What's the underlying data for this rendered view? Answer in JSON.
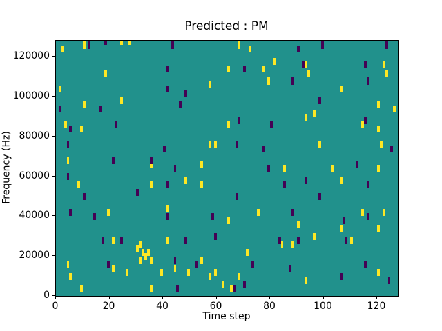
{
  "chart_data": {
    "type": "heatmap",
    "title": "Predicted : PM",
    "xlabel": "Time step",
    "ylabel": "Frequency (Hz)",
    "xlim": [
      0,
      128
    ],
    "ylim": [
      0,
      128000
    ],
    "xticks": [
      0,
      20,
      40,
      60,
      80,
      100,
      120
    ],
    "yticks": [
      0,
      20000,
      40000,
      60000,
      80000,
      100000,
      120000
    ],
    "grid": false,
    "legend": "none",
    "colors": {
      "background_value": "#21918c",
      "high_value": "#fde725",
      "low_value": "#440154",
      "axis": "#000000"
    },
    "cell": {
      "width_steps": 1,
      "height_hz": 3500
    },
    "points": [
      [
        2,
        122000,
        1
      ],
      [
        10,
        124000,
        1
      ],
      [
        24,
        126000,
        1
      ],
      [
        27,
        126000,
        1
      ],
      [
        68,
        124000,
        1
      ],
      [
        72,
        122000,
        1
      ],
      [
        81,
        116000,
        1
      ],
      [
        93,
        114000,
        1
      ],
      [
        122,
        114000,
        1
      ],
      [
        18,
        110000,
        1
      ],
      [
        64,
        112000,
        1
      ],
      [
        77,
        112000,
        1
      ],
      [
        94,
        110000,
        1
      ],
      [
        123,
        110000,
        1
      ],
      [
        1,
        102000,
        1
      ],
      [
        57,
        104000,
        1
      ],
      [
        79,
        106000,
        1
      ],
      [
        106,
        102000,
        1
      ],
      [
        10,
        94000,
        1
      ],
      [
        24,
        96000,
        1
      ],
      [
        120,
        94000,
        1
      ],
      [
        126,
        92000,
        1
      ],
      [
        96,
        90000,
        1
      ],
      [
        3,
        84000,
        1
      ],
      [
        9,
        82000,
        1
      ],
      [
        64,
        84000,
        1
      ],
      [
        93,
        88000,
        1
      ],
      [
        114,
        84000,
        1
      ],
      [
        120,
        82000,
        1
      ],
      [
        57,
        74000,
        1
      ],
      [
        59,
        74000,
        1
      ],
      [
        98,
        74000,
        1
      ],
      [
        121,
        74000,
        1
      ],
      [
        4,
        66000,
        1
      ],
      [
        35,
        64000,
        1
      ],
      [
        54,
        64000,
        1
      ],
      [
        85,
        62000,
        1
      ],
      [
        103,
        62000,
        1
      ],
      [
        120,
        62000,
        1
      ],
      [
        8,
        54000,
        1
      ],
      [
        35,
        54000,
        1
      ],
      [
        48,
        56000,
        1
      ],
      [
        54,
        54000,
        1
      ],
      [
        106,
        56000,
        1
      ],
      [
        19,
        40000,
        1
      ],
      [
        41,
        42000,
        1
      ],
      [
        75,
        40000,
        1
      ],
      [
        114,
        40000,
        1
      ],
      [
        122,
        40000,
        1
      ],
      [
        64,
        36000,
        1
      ],
      [
        90,
        34000,
        1
      ],
      [
        106,
        32000,
        1
      ],
      [
        120,
        32000,
        1
      ],
      [
        21,
        26000,
        1
      ],
      [
        31,
        24000,
        1
      ],
      [
        30,
        22000,
        1
      ],
      [
        32,
        20000,
        1
      ],
      [
        33,
        18000,
        1
      ],
      [
        34,
        20000,
        1
      ],
      [
        35,
        16000,
        1
      ],
      [
        31,
        16000,
        1
      ],
      [
        41,
        26000,
        1
      ],
      [
        44,
        12000,
        1
      ],
      [
        54,
        16000,
        1
      ],
      [
        71,
        20000,
        1
      ],
      [
        84,
        24000,
        1
      ],
      [
        88,
        24000,
        1
      ],
      [
        96,
        28000,
        1
      ],
      [
        110,
        26000,
        1
      ],
      [
        4,
        14000,
        1
      ],
      [
        5,
        8000,
        1
      ],
      [
        21,
        12000,
        1
      ],
      [
        26,
        10000,
        1
      ],
      [
        39,
        10000,
        1
      ],
      [
        49,
        10000,
        1
      ],
      [
        57,
        8000,
        1
      ],
      [
        59,
        10000,
        1
      ],
      [
        62,
        4000,
        1
      ],
      [
        65,
        2000,
        1
      ],
      [
        68,
        8000,
        1
      ],
      [
        93,
        6000,
        1
      ],
      [
        120,
        10000,
        1
      ],
      [
        35,
        2000,
        1
      ],
      [
        9,
        2000,
        1
      ],
      [
        12,
        124000,
        0
      ],
      [
        18,
        126000,
        0
      ],
      [
        43,
        124000,
        0
      ],
      [
        90,
        122000,
        0
      ],
      [
        99,
        124000,
        0
      ],
      [
        123,
        124000,
        0
      ],
      [
        41,
        112000,
        0
      ],
      [
        70,
        112000,
        0
      ],
      [
        92,
        114000,
        0
      ],
      [
        115,
        114000,
        0
      ],
      [
        116,
        106000,
        0
      ],
      [
        41,
        102000,
        0
      ],
      [
        48,
        100000,
        0
      ],
      [
        88,
        106000,
        0
      ],
      [
        1,
        92000,
        0
      ],
      [
        16,
        92000,
        0
      ],
      [
        46,
        94000,
        0
      ],
      [
        98,
        96000,
        0
      ],
      [
        5,
        82000,
        0
      ],
      [
        22,
        84000,
        0
      ],
      [
        68,
        86000,
        0
      ],
      [
        80,
        84000,
        0
      ],
      [
        115,
        86000,
        0
      ],
      [
        4,
        74000,
        0
      ],
      [
        40,
        72000,
        0
      ],
      [
        67,
        74000,
        0
      ],
      [
        77,
        72000,
        0
      ],
      [
        125,
        72000,
        0
      ],
      [
        21,
        66000,
        0
      ],
      [
        35,
        66000,
        0
      ],
      [
        44,
        62000,
        0
      ],
      [
        79,
        62000,
        0
      ],
      [
        112,
        64000,
        0
      ],
      [
        4,
        58000,
        0
      ],
      [
        41,
        54000,
        0
      ],
      [
        85,
        54000,
        0
      ],
      [
        93,
        56000,
        0
      ],
      [
        116,
        54000,
        0
      ],
      [
        10,
        48000,
        0
      ],
      [
        30,
        50000,
        0
      ],
      [
        67,
        48000,
        0
      ],
      [
        98,
        48000,
        0
      ],
      [
        5,
        40000,
        0
      ],
      [
        14,
        38000,
        0
      ],
      [
        41,
        38000,
        0
      ],
      [
        58,
        38000,
        0
      ],
      [
        88,
        40000,
        0
      ],
      [
        116,
        38000,
        0
      ],
      [
        107,
        36000,
        0
      ],
      [
        17,
        26000,
        0
      ],
      [
        24,
        26000,
        0
      ],
      [
        48,
        26000,
        0
      ],
      [
        59,
        28000,
        0
      ],
      [
        83,
        26000,
        0
      ],
      [
        90,
        26000,
        0
      ],
      [
        108,
        26000,
        0
      ],
      [
        19,
        14000,
        0
      ],
      [
        44,
        16000,
        0
      ],
      [
        52,
        14000,
        0
      ],
      [
        73,
        14000,
        0
      ],
      [
        87,
        12000,
        0
      ],
      [
        106,
        8000,
        0
      ],
      [
        115,
        14000,
        0
      ],
      [
        70,
        4000,
        0
      ],
      [
        124,
        6000,
        0
      ],
      [
        66,
        2000,
        0
      ],
      [
        45,
        2000,
        0
      ]
    ]
  }
}
